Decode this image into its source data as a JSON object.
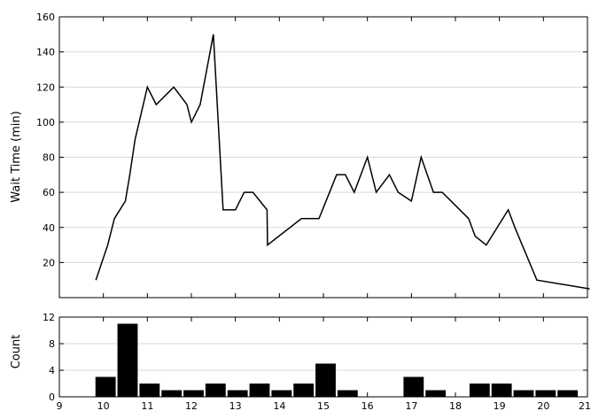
{
  "chart_data": [
    {
      "type": "line",
      "ylabel": "Wait Time (min)",
      "xlim": [
        9,
        21
      ],
      "ylim": [
        0,
        160
      ],
      "yticks": [
        20,
        40,
        60,
        80,
        100,
        120,
        140,
        160
      ],
      "grid": "horizontal",
      "x": [
        9.83,
        10.1,
        10.25,
        10.5,
        10.6,
        10.72,
        11.0,
        11.2,
        11.6,
        11.9,
        12.0,
        12.2,
        12.35,
        12.5,
        12.72,
        13.0,
        13.2,
        13.4,
        13.72,
        13.73,
        14.5,
        14.9,
        15.3,
        15.5,
        15.7,
        16.0,
        16.2,
        16.5,
        16.7,
        17.0,
        17.22,
        17.5,
        17.7,
        18.3,
        18.45,
        18.7,
        19.2,
        19.35,
        19.85,
        21.05
      ],
      "y": [
        10,
        30,
        45,
        55,
        70,
        90,
        120,
        110,
        120,
        110,
        100,
        110,
        130,
        150,
        50,
        50,
        60,
        60,
        50,
        30,
        45,
        45,
        70,
        70,
        60,
        80,
        60,
        70,
        60,
        55,
        80,
        60,
        60,
        45,
        35,
        30,
        50,
        40,
        10,
        5
      ]
    },
    {
      "type": "bar",
      "ylabel": "Count",
      "xlim": [
        9,
        21
      ],
      "ylim": [
        0,
        12
      ],
      "yticks": [
        0,
        4,
        8,
        12
      ],
      "xticks": [
        "9",
        "10",
        "11",
        "12",
        "13",
        "14",
        "15",
        "16",
        "17",
        "18",
        "19",
        "20",
        "21"
      ],
      "bin_width": 0.5,
      "bin_starts": [
        9.8,
        10.3,
        10.8,
        11.3,
        11.8,
        12.3,
        12.8,
        13.3,
        13.8,
        14.3,
        14.8,
        15.3,
        15.8,
        16.3,
        16.8,
        17.3,
        17.8,
        18.3,
        18.8,
        19.3,
        19.8,
        20.3
      ],
      "values": [
        3,
        11,
        2,
        1,
        1,
        2,
        1,
        2,
        1,
        2,
        5,
        1,
        0,
        0,
        3,
        1,
        0,
        2,
        2,
        1,
        1,
        1
      ]
    }
  ]
}
